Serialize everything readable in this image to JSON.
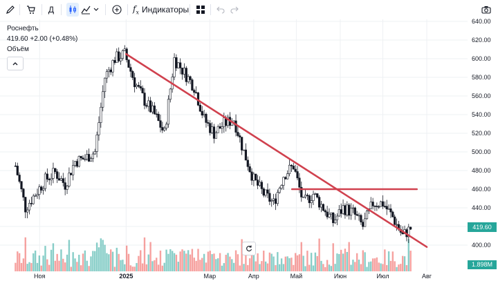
{
  "toolbar": {
    "indicators_label": "Индикаторы",
    "interval_label": "Д"
  },
  "legend": {
    "symbol": "Роснефть",
    "price_line": "419.60 +2.00 (+0.48%)",
    "volume_label": "Объём"
  },
  "price_axis": {
    "ticks": [
      "640.00",
      "620.00",
      "600.00",
      "580.00",
      "560.00",
      "540.00",
      "520.00",
      "500.00",
      "480.00",
      "460.00",
      "440.00",
      "420.00",
      "400.00"
    ],
    "current_price": "419.60",
    "volume_value": "1.898M"
  },
  "time_axis": {
    "labels": [
      "Ноя",
      "2025",
      "Мар",
      "Апр",
      "Май",
      "Июн",
      "Июл",
      "Авг"
    ]
  },
  "colors": {
    "up": "#26a69a",
    "down": "#ef5350",
    "candle": "#131722",
    "trendline": "#d0414e",
    "grid": "#eef0f3"
  },
  "chart_data": {
    "type": "line",
    "title": "Роснефть",
    "xlabel": "",
    "ylabel": "",
    "ylim": [
      380,
      640
    ],
    "x": [
      "2024-10-15",
      "2024-10-22",
      "2024-10-29",
      "2024-11-05",
      "2024-11-12",
      "2024-11-19",
      "2024-11-26",
      "2024-12-03",
      "2024-12-10",
      "2024-12-17",
      "2024-12-24",
      "2024-12-31",
      "2025-01-07",
      "2025-01-14",
      "2025-01-21",
      "2025-01-28",
      "2025-02-04",
      "2025-02-11",
      "2025-02-18",
      "2025-02-25",
      "2025-03-04",
      "2025-03-11",
      "2025-03-18",
      "2025-03-25",
      "2025-04-01",
      "2025-04-08",
      "2025-04-15",
      "2025-04-22",
      "2025-04-29",
      "2025-05-06",
      "2025-05-13",
      "2025-05-20",
      "2025-05-27",
      "2025-06-03",
      "2025-06-10",
      "2025-06-17",
      "2025-06-24",
      "2025-07-01",
      "2025-07-08",
      "2025-07-15",
      "2025-07-22"
    ],
    "series": [
      {
        "values": [
          485,
          440,
          455,
          470,
          478,
          465,
          490,
          493,
          500,
          580,
          600,
          605,
          575,
          555,
          540,
          520,
          600,
          585,
          570,
          535,
          520,
          530,
          535,
          500,
          470,
          455,
          445,
          475,
          485,
          445,
          455,
          440,
          425,
          440,
          435,
          420,
          445,
          445,
          430,
          410,
          420
        ]
      }
    ],
    "annotations": [
      {
        "type": "trendline",
        "from": [
          "2025-01-01",
          605
        ],
        "to": [
          "2025-08-01",
          398
        ]
      },
      {
        "type": "horizontal_segment",
        "from": [
          "2025-04-28",
          460
        ],
        "to": [
          "2025-07-25",
          460
        ]
      }
    ]
  }
}
